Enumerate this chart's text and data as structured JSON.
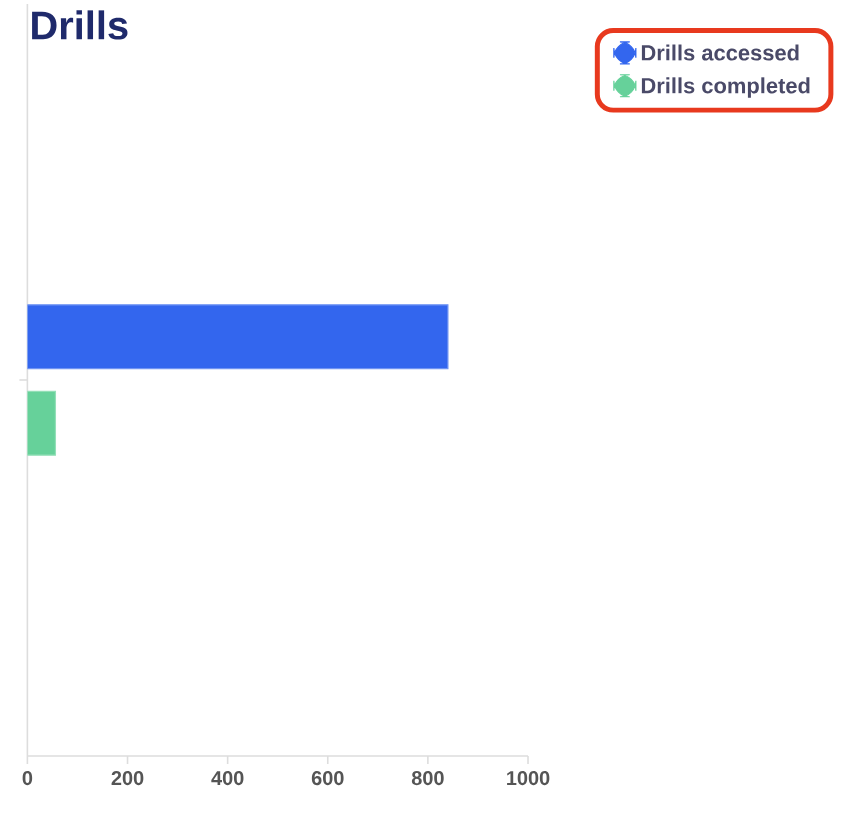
{
  "chart_data": {
    "type": "bar",
    "orientation": "horizontal",
    "title": "Drills",
    "categories": [
      null
    ],
    "series": [
      {
        "name": "Drills accessed",
        "color": "#3366ee",
        "values": [
          840
        ]
      },
      {
        "name": "Drills completed",
        "color": "#66d19a",
        "values": [
          56
        ]
      }
    ],
    "xlim": [
      0,
      1000
    ],
    "xticks": [
      0,
      200,
      400,
      600,
      800,
      1000
    ],
    "legend": "top right"
  }
}
